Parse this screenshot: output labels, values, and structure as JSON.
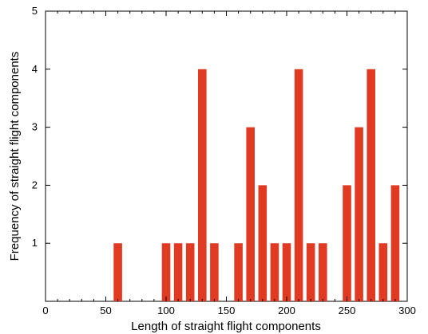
{
  "chart_data": {
    "type": "bar",
    "xlabel": "Length of straight flight components",
    "ylabel": "Frequency of straight flight components",
    "xlim": [
      0,
      300
    ],
    "ylim": [
      0,
      5
    ],
    "x_ticks": [
      0,
      50,
      100,
      150,
      200,
      250,
      300
    ],
    "y_ticks": [
      1,
      2,
      3,
      4,
      5
    ],
    "x_tick_labels": [
      "0",
      "50",
      "100",
      "150",
      "200",
      "250",
      "300"
    ],
    "y_tick_labels": [
      "1",
      "2",
      "3",
      "4",
      "5"
    ],
    "bar_width": 7,
    "x": [
      60,
      100,
      110,
      120,
      130,
      140,
      160,
      170,
      180,
      190,
      200,
      210,
      220,
      230,
      250,
      260,
      270,
      280,
      290
    ],
    "values": [
      1,
      1,
      1,
      1,
      4,
      1,
      1,
      3,
      2,
      1,
      1,
      4,
      1,
      1,
      2,
      3,
      4,
      1,
      2
    ],
    "grid": false,
    "bar_color": "#e03a22",
    "axis_color": "#000000"
  }
}
